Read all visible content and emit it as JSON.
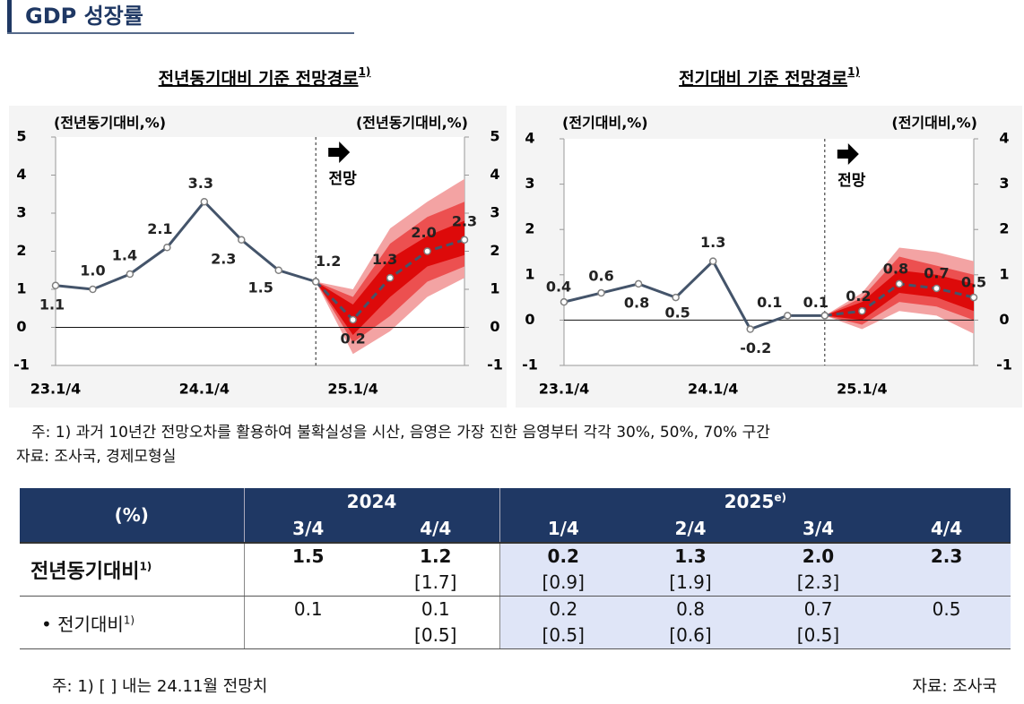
{
  "header": {
    "title": "GDP 성장률"
  },
  "chart_data": [
    {
      "type": "line",
      "title": "전년동기대비 기준 전망경로",
      "title_sup": "1)",
      "y_label": "(전년동기대비,%)",
      "y2_label": "(전년동기대비,%)",
      "annotation": "전망",
      "categories": [
        "23.1/4",
        null,
        null,
        null,
        "24.1/4",
        null,
        null,
        null,
        "25.1/4",
        null,
        null,
        null
      ],
      "ylim": [
        -1,
        5
      ],
      "yticks": [
        -1,
        0,
        1,
        2,
        3,
        4,
        5
      ],
      "y2lim": [
        -1,
        5
      ],
      "y2ticks": [
        -1,
        0,
        1,
        2,
        3,
        4,
        5
      ],
      "series": [
        {
          "color": "#44546a",
          "values": [
            1.1,
            1.0,
            1.4,
            2.1,
            3.3,
            2.3,
            1.5,
            1.2,
            null,
            null,
            null,
            null
          ],
          "value_labels": [
            "1.1",
            "1.0",
            "1.4",
            "2.1",
            "3.3",
            "2.3",
            "1.5",
            "1.2",
            null,
            null,
            null,
            null
          ]
        },
        {
          "color": "#44546a",
          "dashed": true,
          "values": [
            null,
            null,
            null,
            null,
            null,
            null,
            null,
            1.2,
            0.2,
            1.3,
            2.0,
            2.3
          ],
          "value_labels": [
            null,
            null,
            null,
            null,
            null,
            null,
            null,
            null,
            "0.2",
            "1.3",
            "2.0",
            "2.3"
          ]
        }
      ],
      "bands": [
        {
          "color": "#f3a3a3",
          "lower": [
            null,
            null,
            null,
            null,
            null,
            null,
            null,
            1.2,
            -0.7,
            -0.1,
            0.8,
            1.3
          ],
          "upper": [
            null,
            null,
            null,
            null,
            null,
            null,
            null,
            1.2,
            1.0,
            2.6,
            3.3,
            3.9
          ]
        },
        {
          "color": "#ec5050",
          "lower": [
            null,
            null,
            null,
            null,
            null,
            null,
            null,
            1.2,
            -0.4,
            0.3,
            1.2,
            1.6
          ],
          "upper": [
            null,
            null,
            null,
            null,
            null,
            null,
            null,
            1.2,
            0.8,
            2.2,
            2.9,
            3.3
          ]
        },
        {
          "color": "#dd0a0a",
          "lower": [
            null,
            null,
            null,
            null,
            null,
            null,
            null,
            1.2,
            -0.2,
            0.8,
            1.6,
            1.9
          ],
          "upper": [
            null,
            null,
            null,
            null,
            null,
            null,
            null,
            1.2,
            0.6,
            1.8,
            2.4,
            2.8
          ]
        }
      ]
    },
    {
      "type": "line",
      "title": "전기대비 기준 전망경로",
      "title_sup": "1)",
      "y_label": "(전기대비,%)",
      "y2_label": "(전기대비,%)",
      "annotation": "전망",
      "categories": [
        "23.1/4",
        null,
        null,
        null,
        "24.1/4",
        null,
        null,
        null,
        "25.1/4",
        null,
        null,
        null
      ],
      "ylim": [
        -1,
        4
      ],
      "yticks": [
        -1,
        0,
        1,
        2,
        3,
        4
      ],
      "y2lim": [
        -1,
        4
      ],
      "y2ticks": [
        -1,
        0,
        1,
        2,
        3,
        4
      ],
      "series": [
        {
          "color": "#44546a",
          "values": [
            0.4,
            0.6,
            0.8,
            0.5,
            1.3,
            -0.2,
            0.1,
            0.1,
            null,
            null,
            null,
            null
          ],
          "value_labels": [
            "0.4",
            "0.6",
            "0.8",
            "0.5",
            "1.3",
            "-0.2",
            "0.1",
            "0.1",
            null,
            null,
            null,
            null
          ]
        },
        {
          "color": "#44546a",
          "dashed": true,
          "values": [
            null,
            null,
            null,
            null,
            null,
            null,
            null,
            0.1,
            0.2,
            0.8,
            0.7,
            0.5
          ],
          "value_labels": [
            null,
            null,
            null,
            null,
            null,
            null,
            null,
            null,
            "0.2",
            "0.8",
            "0.7",
            "0.5"
          ]
        }
      ],
      "bands": [
        {
          "color": "#f3a3a3",
          "lower": [
            null,
            null,
            null,
            null,
            null,
            null,
            null,
            0.1,
            -0.2,
            0.2,
            0.1,
            -0.3
          ],
          "upper": [
            null,
            null,
            null,
            null,
            null,
            null,
            null,
            0.1,
            0.6,
            1.6,
            1.5,
            1.3
          ]
        },
        {
          "color": "#ec5050",
          "lower": [
            null,
            null,
            null,
            null,
            null,
            null,
            null,
            0.1,
            -0.1,
            0.4,
            0.3,
            0.0
          ],
          "upper": [
            null,
            null,
            null,
            null,
            null,
            null,
            null,
            0.1,
            0.5,
            1.4,
            1.2,
            1.0
          ]
        },
        {
          "color": "#dd0a0a",
          "lower": [
            null,
            null,
            null,
            null,
            null,
            null,
            null,
            0.1,
            0.0,
            0.6,
            0.5,
            0.2
          ],
          "upper": [
            null,
            null,
            null,
            null,
            null,
            null,
            null,
            0.1,
            0.4,
            1.1,
            1.0,
            0.8
          ]
        }
      ]
    }
  ],
  "notes": [
    "주: 1) 과거 10년간 전망오차를 활용하여 불확실성을 시산, 음영은 가장 진한 음영부터 각각 30%, 50%, 70% 구간",
    "자료: 조사국, 경제모형실"
  ],
  "table": {
    "corner": "(%)",
    "years": [
      {
        "label": "2024"
      },
      {
        "label": "2025",
        "sup": "e)"
      }
    ],
    "quarters": [
      "3/4",
      "4/4",
      "1/4",
      "2/4",
      "3/4",
      "4/4"
    ],
    "rows": [
      {
        "label": "전년동기대비",
        "sup": "1)",
        "cells": [
          {
            "value": "1.5"
          },
          {
            "value": "1.2",
            "prev": "[1.7]"
          },
          {
            "value": "0.2",
            "prev": "[0.9]"
          },
          {
            "value": "1.3",
            "prev": "[1.9]"
          },
          {
            "value": "2.0",
            "prev": "[2.3]"
          },
          {
            "value": "2.3"
          }
        ]
      },
      {
        "label": "전기대비",
        "sup": "1)",
        "cells": [
          {
            "value": "0.1"
          },
          {
            "value": "0.1",
            "prev": "[0.5]"
          },
          {
            "value": "0.2",
            "prev": "[0.5]"
          },
          {
            "value": "0.8",
            "prev": "[0.6]"
          },
          {
            "value": "0.7",
            "prev": "[0.5]"
          },
          {
            "value": "0.5"
          }
        ]
      }
    ]
  },
  "footer": {
    "note": "주: 1) [   ] 내는 24.11월 전망치",
    "source": "자료: 조사국"
  }
}
